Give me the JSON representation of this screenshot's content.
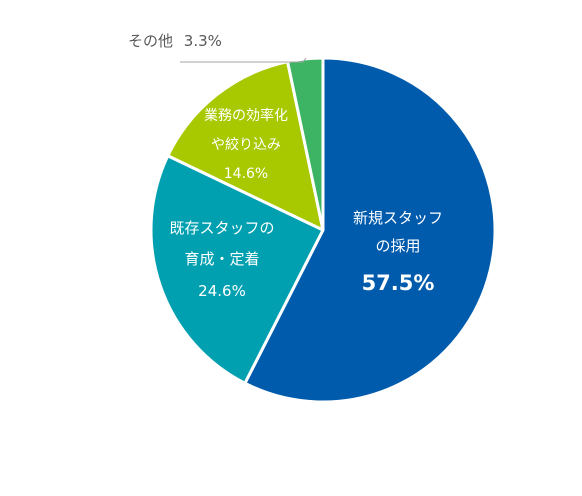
{
  "chart_data": {
    "type": "pie",
    "start": "12 o'clock",
    "direction": "clockwise",
    "slices": [
      {
        "label_lines": [
          "新規スタッフ",
          "の採用"
        ],
        "value": 57.5,
        "value_text": "57.5%",
        "color": "#005bac"
      },
      {
        "label_lines": [
          "既存スタッフの",
          "育成・定着"
        ],
        "value": 24.6,
        "value_text": "24.6%",
        "color": "#00a0b0"
      },
      {
        "label_lines": [
          "業務の効率化",
          "や絞り込み"
        ],
        "value": 14.6,
        "value_text": "14.6%",
        "color": "#a8c800"
      },
      {
        "label_lines": [
          "その他"
        ],
        "value": 3.3,
        "value_text": "3.3%",
        "color": "#3cb464"
      }
    ],
    "leader_line_color": "#a6a6a6"
  }
}
